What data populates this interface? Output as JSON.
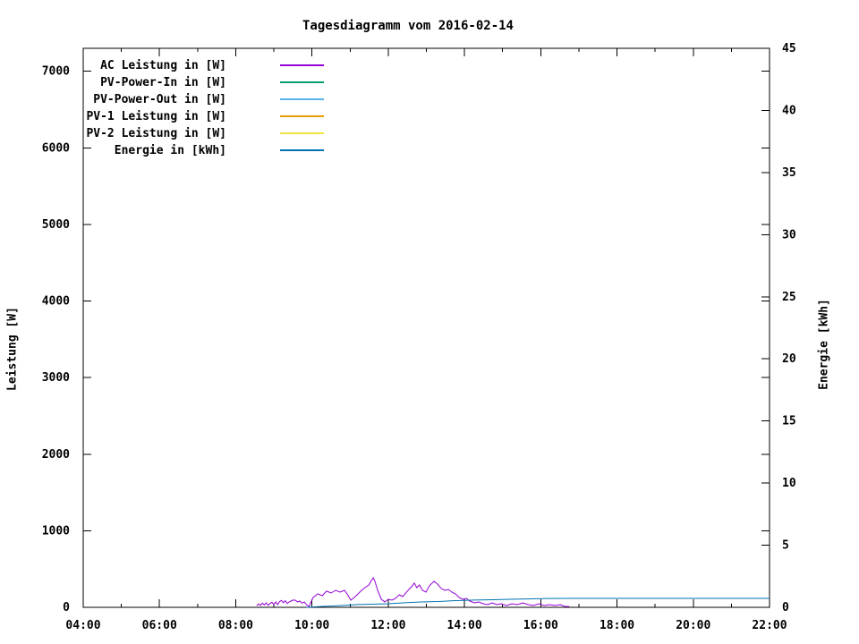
{
  "chart_data": {
    "type": "line",
    "title": "Tagesdiagramm vom 2016-02-14",
    "ylabel_left": "Leistung [W]",
    "ylabel_right": "Energie [kWh]",
    "background_color": "#ffffff",
    "border_color": "#000000",
    "grid": false,
    "legend_position": "top-left-inside",
    "x_axis": {
      "min": 4,
      "max": 22,
      "major_ticks": [
        {
          "t": 4,
          "label": "04:00"
        },
        {
          "t": 6,
          "label": "06:00"
        },
        {
          "t": 8,
          "label": "08:00"
        },
        {
          "t": 10,
          "label": "10:00"
        },
        {
          "t": 12,
          "label": "12:00"
        },
        {
          "t": 14,
          "label": "14:00"
        },
        {
          "t": 16,
          "label": "16:00"
        },
        {
          "t": 18,
          "label": "18:00"
        },
        {
          "t": 20,
          "label": "20:00"
        },
        {
          "t": 22,
          "label": "22:00"
        }
      ],
      "minor_tick_hours": [
        5,
        7,
        9,
        11,
        13,
        15,
        17,
        19,
        21
      ]
    },
    "y_left": {
      "min": 0,
      "max": 7300,
      "ticks": [
        {
          "v": 0,
          "label": "0"
        },
        {
          "v": 1000,
          "label": "1000"
        },
        {
          "v": 2000,
          "label": "2000"
        },
        {
          "v": 3000,
          "label": "3000"
        },
        {
          "v": 4000,
          "label": "4000"
        },
        {
          "v": 5000,
          "label": "5000"
        },
        {
          "v": 6000,
          "label": "6000"
        },
        {
          "v": 7000,
          "label": "7000"
        }
      ]
    },
    "y_right": {
      "min": 0,
      "max": 45,
      "ticks": [
        {
          "v": 0,
          "label": "0"
        },
        {
          "v": 5,
          "label": "5"
        },
        {
          "v": 10,
          "label": "10"
        },
        {
          "v": 15,
          "label": "15"
        },
        {
          "v": 20,
          "label": "20"
        },
        {
          "v": 25,
          "label": "25"
        },
        {
          "v": 30,
          "label": "30"
        },
        {
          "v": 35,
          "label": "35"
        },
        {
          "v": 40,
          "label": "40"
        },
        {
          "v": 45,
          "label": "45"
        }
      ]
    },
    "series": [
      {
        "name": "AC Leistung in [W]",
        "color": "#9400D3",
        "axis": "left",
        "points": [
          [
            8.55,
            20
          ],
          [
            8.6,
            45
          ],
          [
            8.65,
            25
          ],
          [
            8.7,
            55
          ],
          [
            8.75,
            30
          ],
          [
            8.8,
            60
          ],
          [
            8.85,
            25
          ],
          [
            8.9,
            50
          ],
          [
            8.95,
            65
          ],
          [
            9.0,
            40
          ],
          [
            9.05,
            70
          ],
          [
            9.1,
            35
          ],
          [
            9.15,
            75
          ],
          [
            9.2,
            90
          ],
          [
            9.25,
            60
          ],
          [
            9.3,
            85
          ],
          [
            9.35,
            50
          ],
          [
            9.4,
            70
          ],
          [
            9.45,
            82
          ],
          [
            9.5,
            95
          ],
          [
            9.56,
            94
          ],
          [
            9.62,
            70
          ],
          [
            9.68,
            82
          ],
          [
            9.74,
            55
          ],
          [
            9.8,
            70
          ],
          [
            9.86,
            30
          ],
          [
            9.92,
            12
          ],
          [
            10.03,
            129
          ],
          [
            10.15,
            176
          ],
          [
            10.27,
            152
          ],
          [
            10.38,
            211
          ],
          [
            10.5,
            187
          ],
          [
            10.62,
            222
          ],
          [
            10.74,
            199
          ],
          [
            10.85,
            222
          ],
          [
            10.92,
            176
          ],
          [
            11.02,
            94
          ],
          [
            11.11,
            129
          ],
          [
            11.21,
            176
          ],
          [
            11.3,
            222
          ],
          [
            11.39,
            257
          ],
          [
            11.49,
            292
          ],
          [
            11.56,
            351
          ],
          [
            11.61,
            386
          ],
          [
            11.65,
            340
          ],
          [
            11.72,
            222
          ],
          [
            11.82,
            105
          ],
          [
            11.91,
            70
          ],
          [
            12.0,
            105
          ],
          [
            12.1,
            94
          ],
          [
            12.19,
            117
          ],
          [
            12.29,
            164
          ],
          [
            12.38,
            140
          ],
          [
            12.5,
            211
          ],
          [
            12.61,
            269
          ],
          [
            12.68,
            316
          ],
          [
            12.75,
            257
          ],
          [
            12.82,
            292
          ],
          [
            12.9,
            222
          ],
          [
            12.99,
            199
          ],
          [
            13.08,
            281
          ],
          [
            13.2,
            340
          ],
          [
            13.29,
            304
          ],
          [
            13.39,
            246
          ],
          [
            13.48,
            222
          ],
          [
            13.58,
            234
          ],
          [
            13.67,
            199
          ],
          [
            13.76,
            176
          ],
          [
            13.86,
            129
          ],
          [
            13.95,
            105
          ],
          [
            14.05,
            117
          ],
          [
            14.14,
            82
          ],
          [
            14.26,
            58
          ],
          [
            14.37,
            70
          ],
          [
            14.49,
            47
          ],
          [
            14.61,
            35
          ],
          [
            14.73,
            58
          ],
          [
            14.85,
            35
          ],
          [
            14.96,
            47
          ],
          [
            15.1,
            23
          ],
          [
            15.24,
            47
          ],
          [
            15.39,
            35
          ],
          [
            15.53,
            58
          ],
          [
            15.67,
            35
          ],
          [
            15.81,
            23
          ],
          [
            15.95,
            47
          ],
          [
            16.09,
            23
          ],
          [
            16.23,
            35
          ],
          [
            16.37,
            23
          ],
          [
            16.51,
            35
          ],
          [
            16.63,
            12
          ],
          [
            16.75,
            10
          ]
        ]
      },
      {
        "name": "PV-Power-In in [W]",
        "color": "#009E73",
        "axis": "left",
        "points": []
      },
      {
        "name": "PV-Power-Out in [W]",
        "color": "#56B4E9",
        "axis": "left",
        "points": []
      },
      {
        "name": "PV-1 Leistung in [W]",
        "color": "#E69F00",
        "axis": "left",
        "points": []
      },
      {
        "name": "PV-2 Leistung in [W]",
        "color": "#F0E442",
        "axis": "left",
        "points": []
      },
      {
        "name": "Energie in [kWh]",
        "color": "#0072B2",
        "axis": "right",
        "points": [
          [
            9.85,
            0.0
          ],
          [
            10.27,
            0.07
          ],
          [
            10.74,
            0.14
          ],
          [
            11.21,
            0.22
          ],
          [
            11.68,
            0.26
          ],
          [
            12.0,
            0.29
          ],
          [
            12.38,
            0.36
          ],
          [
            12.85,
            0.43
          ],
          [
            13.32,
            0.47
          ],
          [
            13.79,
            0.54
          ],
          [
            14.26,
            0.58
          ],
          [
            14.73,
            0.61
          ],
          [
            15.2,
            0.65
          ],
          [
            15.67,
            0.68
          ],
          [
            16.14,
            0.71
          ],
          [
            16.85,
            0.72
          ],
          [
            18.0,
            0.72
          ],
          [
            20.0,
            0.72
          ],
          [
            22.0,
            0.72
          ]
        ]
      }
    ]
  }
}
